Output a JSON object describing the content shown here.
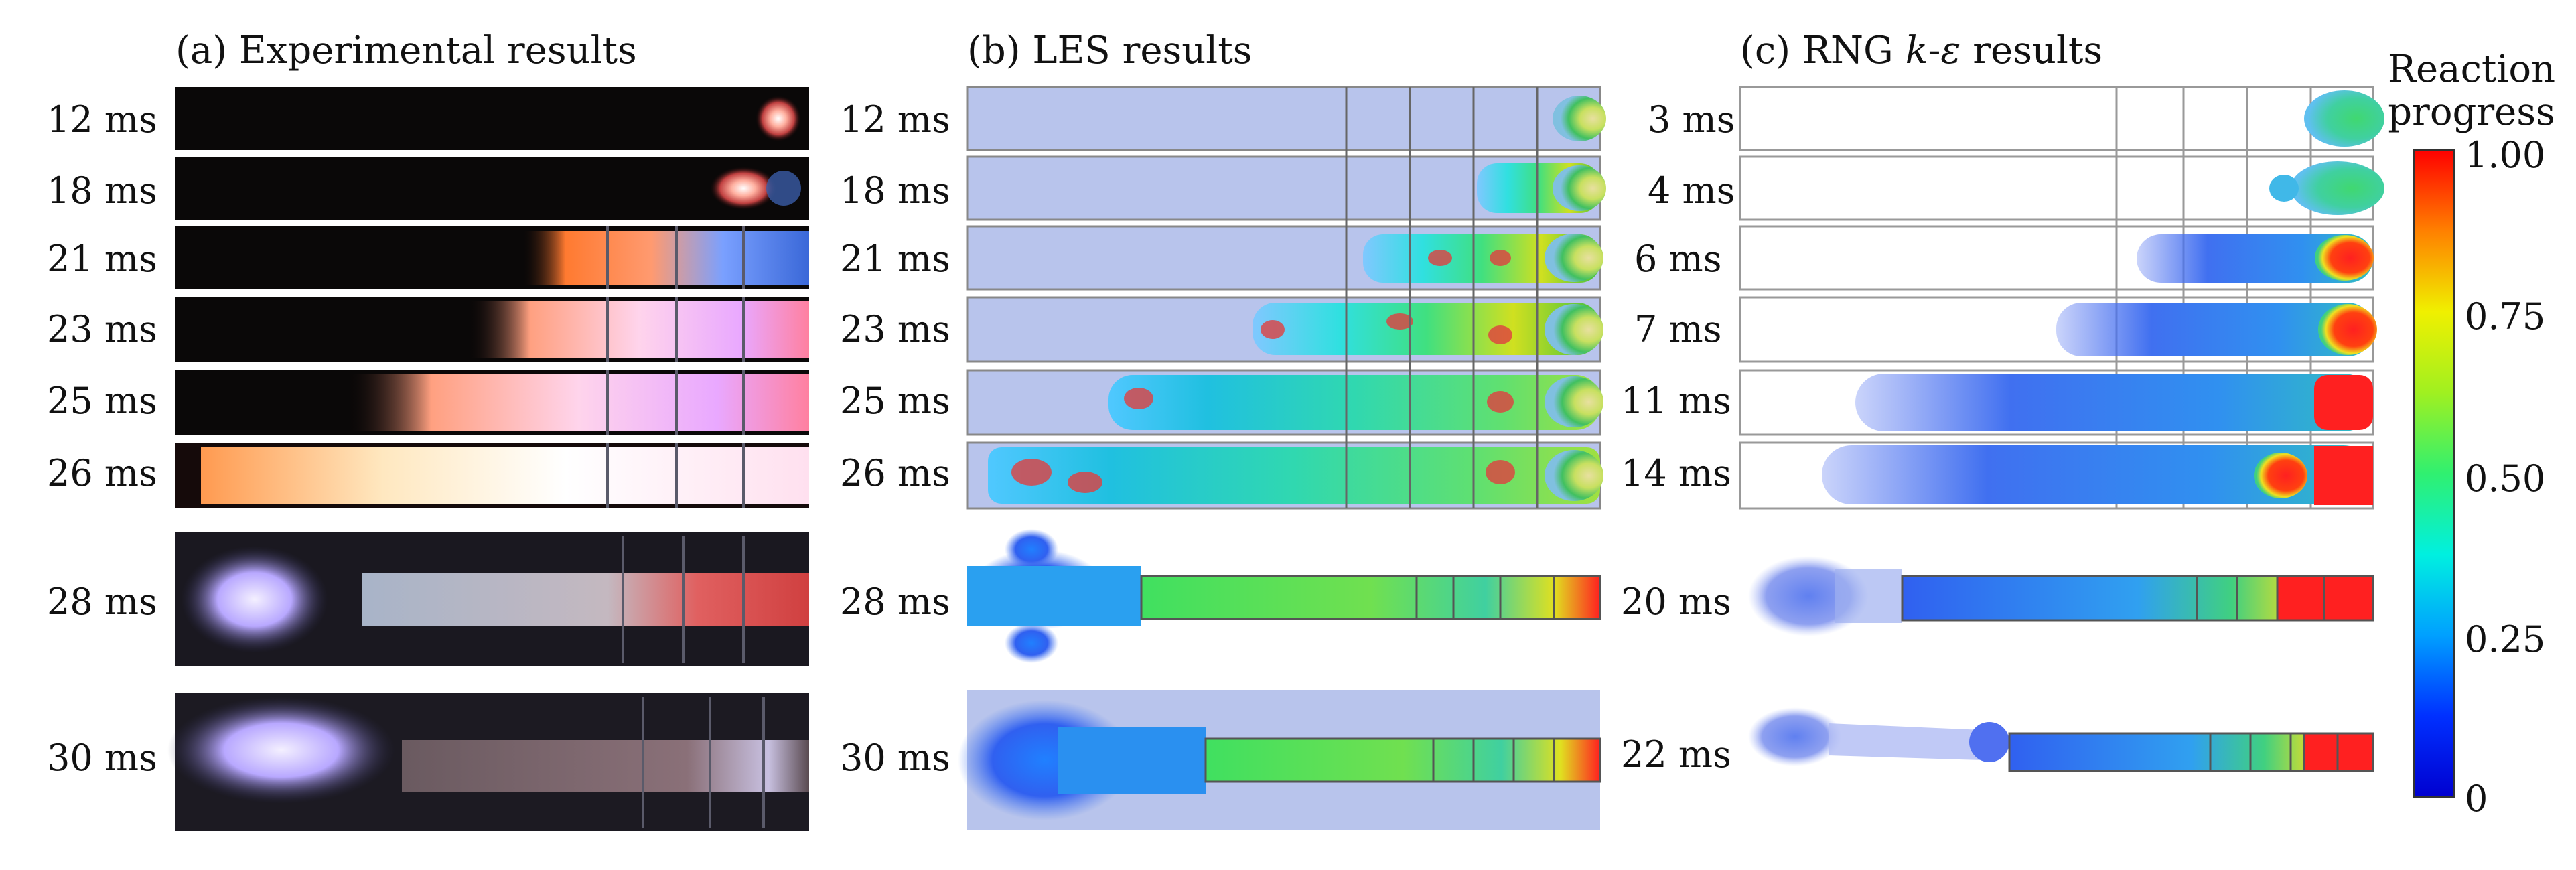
{
  "panels": {
    "a": {
      "title": "(a) Experimental results",
      "times": [
        "12 ms",
        "18 ms",
        "21 ms",
        "23 ms",
        "25 ms",
        "26 ms",
        "28 ms",
        "30 ms"
      ]
    },
    "b": {
      "title": "(b) LES  results",
      "times": [
        "12 ms",
        "18 ms",
        "21 ms",
        "23 ms",
        "25 ms",
        "26 ms",
        "28 ms",
        "30 ms"
      ]
    },
    "c": {
      "title_prefix": "(c) RNG ",
      "title_k": "k",
      "title_dash": "-",
      "title_eps": "ε",
      "title_suffix": "  results",
      "times": [
        "3 ms",
        "4 ms",
        "6 ms",
        "7 ms",
        "11 ms",
        "14 ms",
        "20 ms",
        "22 ms"
      ]
    }
  },
  "colorbar": {
    "title_line1": "Reaction",
    "title_line2": "progress",
    "ticks": [
      "1.00",
      "0.75",
      "0.50",
      "0.25",
      "0"
    ]
  }
}
